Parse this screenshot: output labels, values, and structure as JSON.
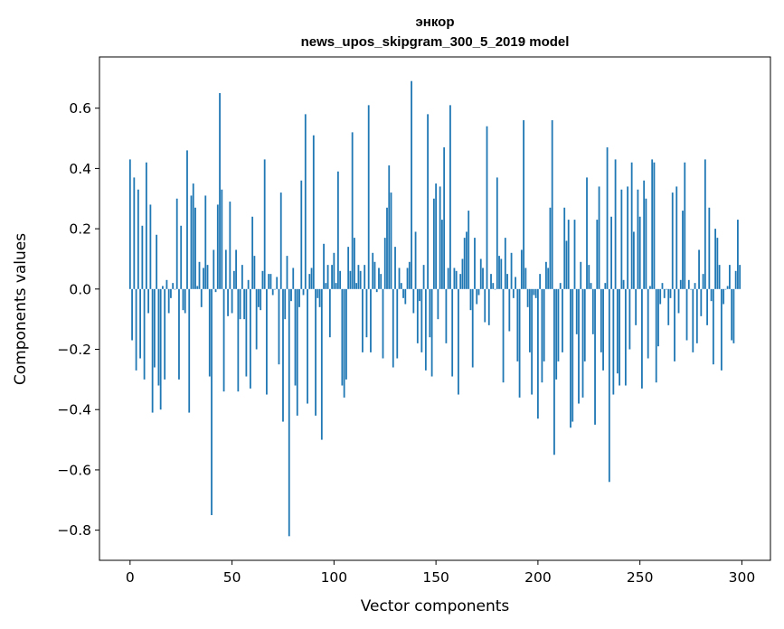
{
  "chart_data": {
    "type": "bar",
    "title_line1": "энкор",
    "title_line2": "news_upos_skipgram_300_5_2019 model",
    "xlabel": "Vector components",
    "ylabel": "Components values",
    "xlim": [
      -15,
      314
    ],
    "ylim": [
      -0.9,
      0.77
    ],
    "xticks": [
      0,
      50,
      100,
      150,
      200,
      250,
      300
    ],
    "xtick_labels": [
      "0",
      "50",
      "100",
      "150",
      "200",
      "250",
      "300"
    ],
    "yticks": [
      -0.8,
      -0.6,
      -0.4,
      -0.2,
      0.0,
      0.2,
      0.4,
      0.6
    ],
    "ytick_labels": [
      "−0.8",
      "−0.6",
      "−0.4",
      "−0.2",
      "0.0",
      "0.2",
      "0.4",
      "0.6"
    ],
    "bar_color": "#1f77b4",
    "x": [
      0,
      1,
      2,
      3,
      4,
      5,
      6,
      7,
      8,
      9,
      10,
      11,
      12,
      13,
      14,
      15,
      16,
      17,
      18,
      19,
      20,
      21,
      22,
      23,
      24,
      25,
      26,
      27,
      28,
      29,
      30,
      31,
      32,
      33,
      34,
      35,
      36,
      37,
      38,
      39,
      40,
      41,
      42,
      43,
      44,
      45,
      46,
      47,
      48,
      49,
      50,
      51,
      52,
      53,
      54,
      55,
      56,
      57,
      58,
      59,
      60,
      61,
      62,
      63,
      64,
      65,
      66,
      67,
      68,
      69,
      70,
      71,
      72,
      73,
      74,
      75,
      76,
      77,
      78,
      79,
      80,
      81,
      82,
      83,
      84,
      85,
      86,
      87,
      88,
      89,
      90,
      91,
      92,
      93,
      94,
      95,
      96,
      97,
      98,
      99,
      100,
      101,
      102,
      103,
      104,
      105,
      106,
      107,
      108,
      109,
      110,
      111,
      112,
      113,
      114,
      115,
      116,
      117,
      118,
      119,
      120,
      121,
      122,
      123,
      124,
      125,
      126,
      127,
      128,
      129,
      130,
      131,
      132,
      133,
      134,
      135,
      136,
      137,
      138,
      139,
      140,
      141,
      142,
      143,
      144,
      145,
      146,
      147,
      148,
      149,
      150,
      151,
      152,
      153,
      154,
      155,
      156,
      157,
      158,
      159,
      160,
      161,
      162,
      163,
      164,
      165,
      166,
      167,
      168,
      169,
      170,
      171,
      172,
      173,
      174,
      175,
      176,
      177,
      178,
      179,
      180,
      181,
      182,
      183,
      184,
      185,
      186,
      187,
      188,
      189,
      190,
      191,
      192,
      193,
      194,
      195,
      196,
      197,
      198,
      199,
      200,
      201,
      202,
      203,
      204,
      205,
      206,
      207,
      208,
      209,
      210,
      211,
      212,
      213,
      214,
      215,
      216,
      217,
      218,
      219,
      220,
      221,
      222,
      223,
      224,
      225,
      226,
      227,
      228,
      229,
      230,
      231,
      232,
      233,
      234,
      235,
      236,
      237,
      238,
      239,
      240,
      241,
      242,
      243,
      244,
      245,
      246,
      247,
      248,
      249,
      250,
      251,
      252,
      253,
      254,
      255,
      256,
      257,
      258,
      259,
      260,
      261,
      262,
      263,
      264,
      265,
      266,
      267,
      268,
      269,
      270,
      271,
      272,
      273,
      274,
      275,
      276,
      277,
      278,
      279,
      280,
      281,
      282,
      283,
      284,
      285,
      286,
      287,
      288,
      289,
      290,
      291,
      292,
      293,
      294,
      295,
      296,
      297,
      298,
      299
    ],
    "values": [
      0.43,
      -0.17,
      0.37,
      -0.27,
      0.33,
      -0.23,
      0.21,
      -0.3,
      0.42,
      -0.08,
      0.28,
      -0.41,
      -0.26,
      0.18,
      -0.32,
      -0.4,
      0.01,
      -0.3,
      0.03,
      -0.08,
      -0.03,
      0.02,
      0.0,
      0.3,
      -0.3,
      0.21,
      -0.07,
      -0.08,
      0.46,
      -0.41,
      0.31,
      0.35,
      0.27,
      0.01,
      0.09,
      -0.06,
      0.07,
      0.31,
      0.08,
      -0.29,
      -0.75,
      0.13,
      -0.01,
      0.28,
      0.65,
      0.33,
      -0.34,
      0.13,
      -0.09,
      0.29,
      -0.08,
      0.06,
      0.13,
      -0.34,
      -0.1,
      0.08,
      -0.1,
      -0.29,
      0.03,
      -0.33,
      0.24,
      0.11,
      -0.2,
      -0.06,
      -0.07,
      0.06,
      0.43,
      -0.35,
      0.05,
      0.05,
      -0.02,
      0.0,
      0.04,
      -0.25,
      0.32,
      -0.44,
      -0.1,
      0.11,
      -0.82,
      -0.04,
      0.07,
      -0.32,
      -0.42,
      -0.06,
      0.36,
      -0.02,
      0.58,
      -0.38,
      0.05,
      0.07,
      0.51,
      -0.42,
      -0.03,
      -0.06,
      -0.5,
      0.15,
      0.02,
      0.08,
      -0.16,
      0.08,
      0.12,
      0.02,
      0.39,
      0.06,
      -0.32,
      -0.36,
      -0.3,
      0.14,
      0.06,
      0.52,
      0.17,
      0.02,
      0.08,
      0.06,
      -0.21,
      0.08,
      -0.16,
      0.61,
      -0.21,
      0.12,
      0.09,
      -0.01,
      0.07,
      0.05,
      -0.23,
      0.17,
      0.27,
      0.41,
      0.32,
      -0.26,
      0.14,
      -0.23,
      0.07,
      0.02,
      -0.03,
      -0.05,
      0.07,
      0.09,
      0.69,
      -0.08,
      0.19,
      -0.18,
      -0.04,
      -0.21,
      0.08,
      -0.27,
      0.58,
      -0.16,
      -0.29,
      0.3,
      0.35,
      -0.1,
      0.34,
      0.23,
      0.47,
      -0.18,
      0.07,
      0.61,
      -0.29,
      0.07,
      0.06,
      -0.35,
      0.05,
      0.1,
      0.17,
      0.19,
      0.26,
      -0.07,
      -0.26,
      0.17,
      -0.05,
      -0.02,
      0.1,
      0.07,
      -0.11,
      0.54,
      -0.12,
      0.05,
      0.02,
      0.0,
      0.37,
      0.11,
      0.1,
      -0.31,
      0.17,
      0.05,
      -0.14,
      0.12,
      -0.03,
      0.04,
      -0.24,
      -0.36,
      0.13,
      0.56,
      0.07,
      -0.06,
      -0.21,
      -0.35,
      -0.02,
      -0.03,
      -0.43,
      0.05,
      -0.31,
      -0.24,
      0.09,
      0.07,
      0.27,
      0.56,
      -0.55,
      -0.3,
      -0.24,
      0.02,
      -0.21,
      0.27,
      0.16,
      0.23,
      -0.46,
      -0.44,
      0.23,
      -0.15,
      -0.38,
      0.09,
      -0.36,
      -0.24,
      0.37,
      0.08,
      0.02,
      -0.15,
      -0.45,
      0.23,
      0.34,
      -0.21,
      -0.27,
      0.02,
      0.47,
      -0.64,
      0.24,
      -0.35,
      0.43,
      -0.28,
      -0.32,
      0.33,
      0.03,
      -0.32,
      0.34,
      -0.2,
      0.42,
      0.19,
      -0.12,
      0.33,
      0.24,
      -0.33,
      0.36,
      0.3,
      -0.23,
      0.01,
      0.43,
      0.42,
      -0.31,
      -0.19,
      -0.05,
      0.02,
      -0.03,
      0.0,
      -0.12,
      -0.03,
      0.32,
      -0.24,
      0.34,
      -0.08,
      0.03,
      0.26,
      0.42,
      -0.17,
      0.03,
      0.0,
      -0.21,
      0.02,
      -0.18,
      0.13,
      -0.09,
      0.05,
      0.43,
      -0.12,
      0.27,
      -0.04,
      -0.25,
      0.2,
      0.17,
      0.08,
      -0.27,
      -0.05,
      0.0,
      0.01,
      0.08,
      -0.17,
      -0.18,
      0.06,
      0.23,
      0.08
    ]
  }
}
